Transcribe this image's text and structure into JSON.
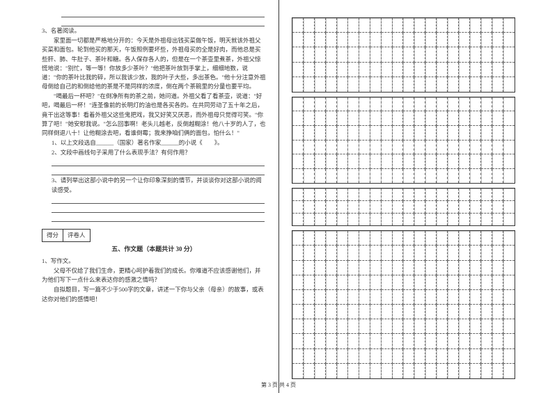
{
  "lines": {
    "blank_before": [
      "",
      ""
    ],
    "q3_num": "3、名著阅读。",
    "q3_p1": "家里面一切都是严格地分开的：今天是外祖母出钱买菜做午饭，明天就该外祖父买菜和面包。轮到他买的那天，午饭照例要坏些，外祖母买的全是好肉，而他总是买些肝、肺、牛肚子、茶叶和糖。各人保存各人的，但是在一个茶壶里煮茶，外祖父惊慌地说：\"别忙，等一等！你放多少茶叶？\"他把茶叶放到手掌上，细细地数，说道：\"你的茶叶比我的碎，所以我该少放，我的叶子大些，多出茶色。\"他十分注意外祖母倒给自己的和倒给他的茶是不是同样的浓度，倒在两个茶碗里的分量也要平均。",
    "q3_p2": "\"喝最后一杯吧？\"在倒净所有的茶之前，她问道。外祖父看了看茶壶，说道：\"好吧，喝最后一杯！\"连圣像前的长明灯的油也是各买各的。在共同劳动了五十年之后，竟干出这等事！看着外祖父这些鬼把戏，我又好笑又厌恶，而外祖母只觉得可笑。\"你算了吧！\"她安慰我说。\"怎么回事啊！老头儿越老，反倒越糊涂！他八十岁的人了，也同样倒退八十！让他糊涂去吧，看谁倒霉；我来挣咱们俩的面包，怕什么！\"",
    "q3_s1_a": "1、以上文段选自______（国家）著名作家______的小说《",
    "q3_s1_b": "》。",
    "q3_s2": "2、文段中画线句子采用了什么表现手法？有何作用？",
    "q3_s3": "3、请列举出这部小说中的另一个让你印象深刻的情节，并谈谈你对这部小说的阅读感受。"
  },
  "score": {
    "label1": "得分",
    "label2": "评卷人"
  },
  "section5": {
    "title": "五、作文题（本题共计 30 分）",
    "q1_num": "1、写作文。",
    "q1_p1": "父母不仅给了我们生命，更精心呵护着我们的成长。你难道不应该感谢他们，并为他们写下一点什么来表达你的感激之情吗？",
    "q1_p2": "自拟题目，写一篇不少于500字的文章，讲述一下你与父亲（母亲）的故事，或表达你对他们的感情吧！"
  },
  "footer": "第 3 页 共 4 页",
  "grid": {
    "cols": 20,
    "rows": {
      "g1": 5,
      "g2": 6,
      "g3": 3,
      "g4": 10
    },
    "cell_border": "#666666",
    "outer_border": "#333333"
  },
  "colors": {
    "text": "#333333",
    "rule": "#555555",
    "bg": "#ffffff"
  },
  "fonts": {
    "body_size_pt": 6.5,
    "title_size_pt": 7
  }
}
